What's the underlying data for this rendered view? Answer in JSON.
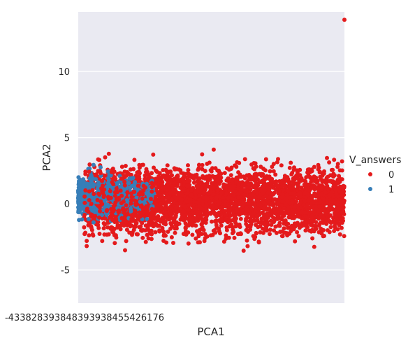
{
  "chart_data": {
    "type": "scatter",
    "title": "",
    "xlabel": "PCA1",
    "ylabel": "PCA2",
    "xlim": [
      -4.3,
      5.2
    ],
    "ylim": [
      -7.5,
      14.5
    ],
    "yticks": [
      -5,
      0,
      5,
      10
    ],
    "xtick_labels_overlapping": "-433828393848393938455426176",
    "grid": true,
    "background": "#eaeaf2",
    "legend": {
      "title": "V_answers",
      "placement": "right-outside",
      "entries": [
        {
          "label": "0",
          "color": "#e41a1c"
        },
        {
          "label": "1",
          "color": "#377eb8"
        }
      ]
    },
    "series": [
      {
        "label": "0",
        "color": "#e41a1c",
        "x_range": [
          -4.1,
          5.2
        ],
        "y_range": [
          -6.5,
          4.7
        ],
        "outlier": {
          "x": 5.2,
          "y": 13.9
        },
        "point_count_estimate": 3500
      },
      {
        "label": "1",
        "color": "#377eb8",
        "x_range": [
          -4.3,
          -1.6
        ],
        "y_range": [
          -2.0,
          4.2
        ],
        "point_count_estimate": 500
      }
    ]
  }
}
